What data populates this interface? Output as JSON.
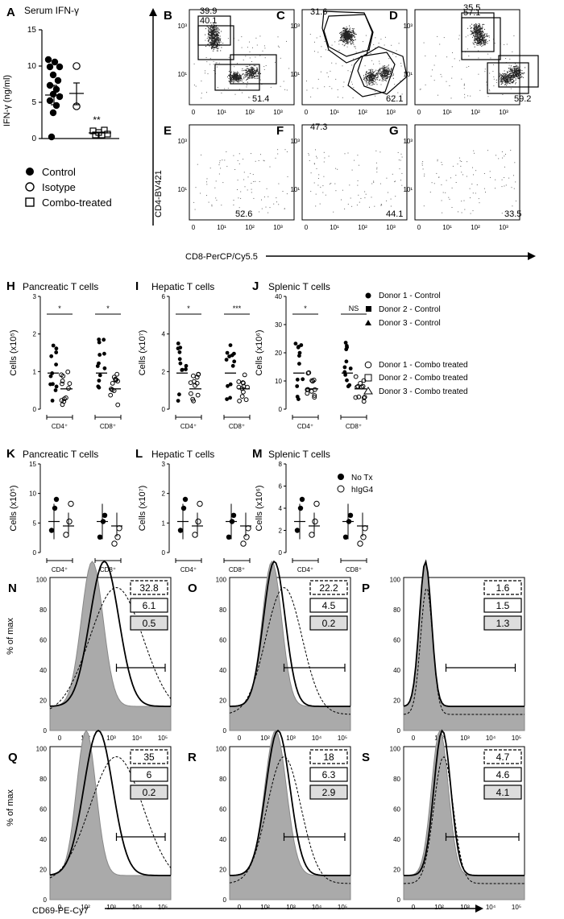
{
  "figure": {
    "panel_A": {
      "letter": "A",
      "title": "Serum IFN-γ",
      "ylabel": "IFN-γ (ng/ml)",
      "yticks": [
        "0",
        "5",
        "10",
        "15"
      ],
      "sig": "**",
      "legend": [
        {
          "label": "Control",
          "marker": "filled-circle"
        },
        {
          "label": "Isotype",
          "marker": "open-circle"
        },
        {
          "label": "Combo-treated",
          "marker": "open-square"
        }
      ]
    },
    "flow": {
      "ylabel": "CD4-BV421",
      "xlabel": "CD8-PerCP/Cy5.5",
      "panels": [
        {
          "letter": "B",
          "upper": "39.9",
          "lower": "51.4"
        },
        {
          "letter": "C",
          "upper": "31.6",
          "lower": "62.1"
        },
        {
          "letter": "D",
          "upper": "35.5",
          "lower": "59.2"
        },
        {
          "letter": "E",
          "upper": "40.1",
          "lower": "52.6"
        },
        {
          "letter": "F",
          "upper": "47.3",
          "lower": "44.1"
        },
        {
          "letter": "G",
          "upper": "57.1",
          "lower": "33.5"
        }
      ]
    },
    "row_HJ": {
      "panels": [
        {
          "letter": "H",
          "title": "Pancreatic T cells",
          "ylabel": "Cells (x10⁵)",
          "yticks": [
            "0",
            "1",
            "2",
            "3"
          ],
          "sig": [
            "*",
            "*"
          ]
        },
        {
          "letter": "I",
          "title": "Hepatic T cells",
          "ylabel": "Cells (x10⁷)",
          "yticks": [
            "0",
            "2",
            "4",
            "6"
          ],
          "sig": [
            "*",
            "***"
          ]
        },
        {
          "letter": "J",
          "title": "Splenic T cells",
          "ylabel": "Cells (x10⁶)",
          "yticks": [
            "0",
            "10",
            "20",
            "30",
            "40"
          ],
          "sig": [
            "*",
            "NS"
          ]
        }
      ],
      "xcats": [
        "CD4⁺",
        "CD8⁺"
      ],
      "legend": [
        "Donor 1 - Control",
        "Donor 2 - Control",
        "Donor 3 - Control",
        "Donor 1 - Combo treated",
        "Donor 2 - Combo treated",
        "Donor 3 - Combo treated"
      ]
    },
    "row_KM": {
      "panels": [
        {
          "letter": "K",
          "title": "Pancreatic T cells",
          "ylabel": "Cells (x10⁵)",
          "yticks": [
            "0",
            "5",
            "10",
            "15"
          ]
        },
        {
          "letter": "L",
          "title": "Hepatic T cells",
          "ylabel": "Cells (x10⁷)",
          "yticks": [
            "0",
            "1",
            "2",
            "3"
          ]
        },
        {
          "letter": "M",
          "title": "Splenic T cells",
          "ylabel": "Cells (x10⁶)",
          "yticks": [
            "0",
            "2",
            "4",
            "6",
            "8"
          ]
        }
      ],
      "xcats": [
        "CD4⁺",
        "CD8⁺"
      ],
      "legend": [
        "No Tx",
        "hIgG4"
      ]
    },
    "histograms": {
      "ylabel": "% of max",
      "xlabel": "CD69-PE-Cy7",
      "yticks": [
        "0",
        "20",
        "40",
        "60",
        "80",
        "100"
      ],
      "panels": [
        {
          "letter": "N",
          "boxes": [
            "32.8",
            "6.1",
            "0.5"
          ]
        },
        {
          "letter": "O",
          "boxes": [
            "22.2",
            "4.5",
            "0.2"
          ]
        },
        {
          "letter": "P",
          "boxes": [
            "1.6",
            "1.5",
            "1.3"
          ]
        },
        {
          "letter": "Q",
          "boxes": [
            "35",
            "6",
            "0.2"
          ]
        },
        {
          "letter": "R",
          "boxes": [
            "18",
            "6.3",
            "2.9"
          ]
        },
        {
          "letter": "S",
          "boxes": [
            "4.7",
            "4.6",
            "4.1"
          ]
        }
      ]
    }
  }
}
